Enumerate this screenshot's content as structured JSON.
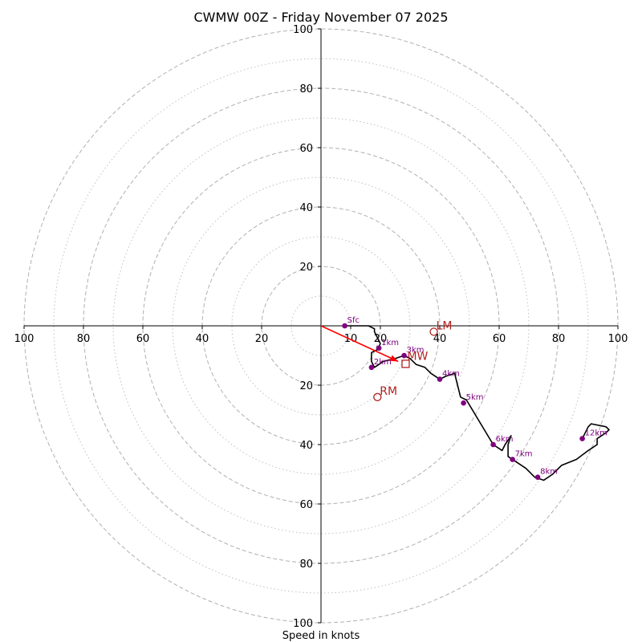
{
  "chart_data": {
    "type": "hodograph",
    "title": "CWMW 00Z - Friday November 07 2025",
    "xlabel": "Speed in knots",
    "xlim": [
      -100,
      100
    ],
    "ylim": [
      -100,
      100
    ],
    "rings_major": [
      20,
      40,
      60,
      80,
      100
    ],
    "rings_minor": [
      10,
      30,
      50,
      70,
      90
    ],
    "x_ticks": [
      {
        "v": -100,
        "label": "100"
      },
      {
        "v": -80,
        "label": "80"
      },
      {
        "v": -60,
        "label": "60"
      },
      {
        "v": -40,
        "label": "40"
      },
      {
        "v": -20,
        "label": "20"
      },
      {
        "v": 20,
        "label": "20"
      },
      {
        "v": 40,
        "label": "40"
      },
      {
        "v": 60,
        "label": "60"
      },
      {
        "v": 80,
        "label": "80"
      },
      {
        "v": 100,
        "label": "100"
      }
    ],
    "y_ticks": [
      {
        "v": 100,
        "label": "100"
      },
      {
        "v": 80,
        "label": "80"
      },
      {
        "v": 60,
        "label": "60"
      },
      {
        "v": 40,
        "label": "40"
      },
      {
        "v": 20,
        "label": "20"
      },
      {
        "v": -20,
        "label": "20"
      },
      {
        "v": -40,
        "label": "40"
      },
      {
        "v": -60,
        "label": "60"
      },
      {
        "v": -80,
        "label": "80"
      },
      {
        "v": -100,
        "label": "100"
      }
    ],
    "inner_tick": {
      "v": 10,
      "label": "10"
    },
    "hodograph_trace": [
      [
        8,
        0
      ],
      [
        16,
        0
      ],
      [
        18,
        -1
      ],
      [
        18,
        -2
      ],
      [
        19,
        -4
      ],
      [
        20,
        -6
      ],
      [
        19,
        -8
      ],
      [
        17,
        -9
      ],
      [
        17,
        -12
      ],
      [
        18,
        -14
      ],
      [
        21,
        -12
      ],
      [
        25,
        -11
      ],
      [
        28,
        -10
      ],
      [
        30,
        -11
      ],
      [
        32,
        -13
      ],
      [
        35,
        -14
      ],
      [
        37,
        -16
      ],
      [
        40,
        -18
      ],
      [
        42,
        -17
      ],
      [
        45,
        -16
      ],
      [
        46,
        -20
      ],
      [
        47,
        -24
      ],
      [
        49,
        -25
      ],
      [
        52,
        -30
      ],
      [
        55,
        -35
      ],
      [
        58,
        -40
      ],
      [
        61,
        -42
      ],
      [
        62,
        -40
      ],
      [
        64,
        -37
      ],
      [
        63,
        -40
      ],
      [
        63,
        -44
      ],
      [
        66,
        -46
      ],
      [
        69,
        -48
      ],
      [
        72,
        -51
      ],
      [
        75,
        -52
      ],
      [
        78,
        -50
      ],
      [
        81,
        -47
      ],
      [
        86,
        -45
      ],
      [
        90,
        -42
      ],
      [
        93,
        -40
      ],
      [
        93,
        -38
      ],
      [
        96,
        -36
      ],
      [
        97,
        -35
      ],
      [
        96,
        -34
      ],
      [
        91,
        -33
      ],
      [
        90,
        -34
      ],
      [
        89,
        -36
      ],
      [
        88,
        -38
      ]
    ],
    "height_points": [
      {
        "label": "Sfc",
        "x": 8,
        "y": 0
      },
      {
        "label": "1km",
        "x": 19.5,
        "y": -7.5
      },
      {
        "label": "2km",
        "x": 17,
        "y": -14
      },
      {
        "label": "3km",
        "x": 28,
        "y": -10
      },
      {
        "label": "4km",
        "x": 40,
        "y": -18
      },
      {
        "label": "5km",
        "x": 48,
        "y": -26
      },
      {
        "label": "6km",
        "x": 58,
        "y": -40
      },
      {
        "label": "7km",
        "x": 64.5,
        "y": -45
      },
      {
        "label": "8km",
        "x": 73,
        "y": -51
      },
      {
        "label": "12km",
        "x": 88,
        "y": -38
      }
    ],
    "shear_vector": {
      "from": [
        0,
        0
      ],
      "to": [
        26,
        -12
      ],
      "color": "#ff0000"
    },
    "storm_motion": {
      "LM": {
        "label": "LM",
        "x": 38,
        "y": -2
      },
      "RM": {
        "label": "RM",
        "x": 19,
        "y": -24
      },
      "MW": {
        "label": "MW",
        "x": 28.5,
        "y": -12.8
      }
    },
    "colors": {
      "trace": "#000000",
      "points": "#800080",
      "motion": "#b22222",
      "grid": "#b0b0b0",
      "shear": "#ff0000"
    }
  }
}
